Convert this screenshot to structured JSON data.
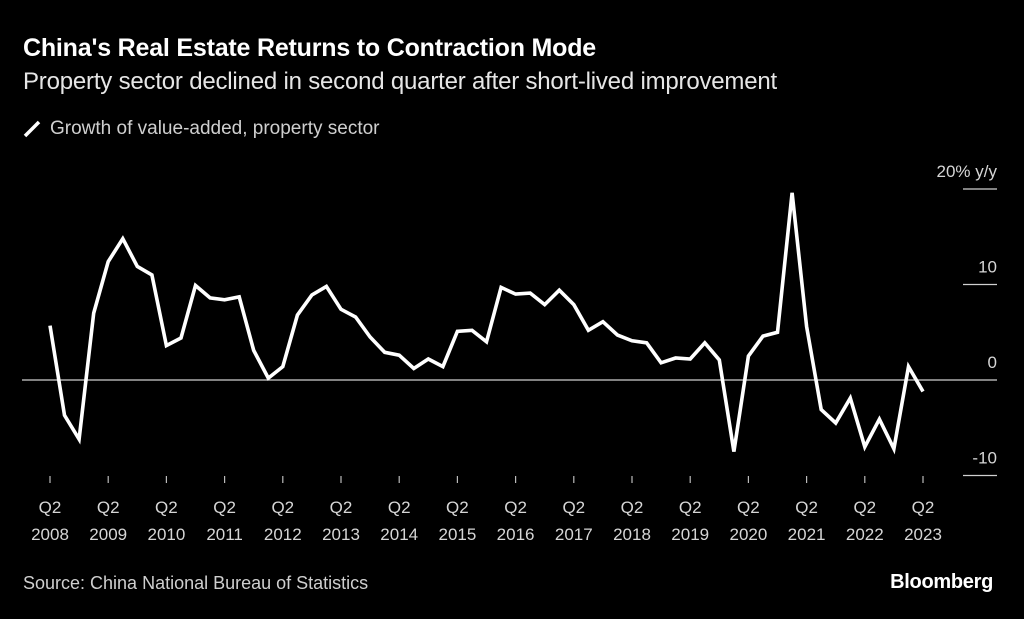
{
  "header": {
    "title": "China's Real Estate Returns to Contraction Mode",
    "subtitle": "Property sector declined in second quarter after short-lived improvement"
  },
  "legend": {
    "label": "Growth of value-added, property sector",
    "icon": "line-swatch-icon"
  },
  "footer": {
    "source": "Source: China National Bureau of Statistics",
    "brand": "Bloomberg"
  },
  "colors": {
    "background": "#000000",
    "line": "#ffffff",
    "text": "#d6d6d6",
    "zero_line": "#d0d0d0"
  },
  "chart_data": {
    "type": "line",
    "title": "China's Real Estate Returns to Contraction Mode",
    "subtitle": "Property sector declined in second quarter after short-lived improvement",
    "xlabel": "",
    "ylabel": "% y/y",
    "ylim": [
      -10,
      20
    ],
    "yticks": [
      {
        "value": 20,
        "label": "20% y/y"
      },
      {
        "value": 10,
        "label": "10"
      },
      {
        "value": 0,
        "label": "0"
      },
      {
        "value": -10,
        "label": "-10"
      }
    ],
    "xticks": [
      {
        "index": 0,
        "q": "Q2",
        "year": "2008"
      },
      {
        "index": 4,
        "q": "Q2",
        "year": "2009"
      },
      {
        "index": 8,
        "q": "Q2",
        "year": "2010"
      },
      {
        "index": 12,
        "q": "Q2",
        "year": "2011"
      },
      {
        "index": 16,
        "q": "Q2",
        "year": "2012"
      },
      {
        "index": 20,
        "q": "Q2",
        "year": "2013"
      },
      {
        "index": 24,
        "q": "Q2",
        "year": "2014"
      },
      {
        "index": 28,
        "q": "Q2",
        "year": "2015"
      },
      {
        "index": 32,
        "q": "Q2",
        "year": "2016"
      },
      {
        "index": 36,
        "q": "Q2",
        "year": "2017"
      },
      {
        "index": 40,
        "q": "Q2",
        "year": "2018"
      },
      {
        "index": 44,
        "q": "Q2",
        "year": "2019"
      },
      {
        "index": 48,
        "q": "Q2",
        "year": "2020"
      },
      {
        "index": 52,
        "q": "Q2",
        "year": "2021"
      },
      {
        "index": 56,
        "q": "Q2",
        "year": "2022"
      },
      {
        "index": 60,
        "q": "Q2",
        "year": "2023"
      }
    ],
    "x": [
      "2008Q2",
      "2008Q3",
      "2008Q4",
      "2009Q1",
      "2009Q2",
      "2009Q3",
      "2009Q4",
      "2010Q1",
      "2010Q2",
      "2010Q3",
      "2010Q4",
      "2011Q1",
      "2011Q2",
      "2011Q3",
      "2011Q4",
      "2012Q1",
      "2012Q2",
      "2012Q3",
      "2012Q4",
      "2013Q1",
      "2013Q2",
      "2013Q3",
      "2013Q4",
      "2014Q1",
      "2014Q2",
      "2014Q3",
      "2014Q4",
      "2015Q1",
      "2015Q2",
      "2015Q3",
      "2015Q4",
      "2016Q1",
      "2016Q2",
      "2016Q3",
      "2016Q4",
      "2017Q1",
      "2017Q2",
      "2017Q3",
      "2017Q4",
      "2018Q1",
      "2018Q2",
      "2018Q3",
      "2018Q4",
      "2019Q1",
      "2019Q2",
      "2019Q3",
      "2019Q4",
      "2020Q1",
      "2020Q2",
      "2020Q3",
      "2020Q4",
      "2021Q1",
      "2021Q2",
      "2021Q3",
      "2021Q4",
      "2022Q1",
      "2022Q2",
      "2022Q3",
      "2022Q4",
      "2023Q1",
      "2023Q2"
    ],
    "series": [
      {
        "name": "Growth of value-added, property sector",
        "values": [
          5.7,
          -3.7,
          -6.2,
          7.0,
          12.4,
          14.8,
          11.9,
          11.0,
          3.6,
          4.4,
          9.9,
          8.6,
          8.4,
          8.7,
          3.1,
          0.2,
          1.4,
          6.8,
          8.9,
          9.8,
          7.4,
          6.6,
          4.5,
          2.9,
          2.6,
          1.2,
          2.2,
          1.4,
          5.1,
          5.2,
          4.0,
          9.7,
          9.0,
          9.1,
          7.9,
          9.4,
          7.9,
          5.2,
          6.1,
          4.7,
          4.1,
          3.9,
          1.8,
          2.3,
          2.2,
          3.9,
          2.1,
          -7.5,
          2.5,
          4.6,
          5.0,
          19.6,
          5.6,
          -3.1,
          -4.5,
          -1.9,
          -7.0,
          -4.1,
          -7.2,
          1.4,
          -1.2
        ]
      }
    ],
    "grid": false,
    "zero_line": true,
    "legend_position": "top-left",
    "yaxis_side": "right"
  }
}
